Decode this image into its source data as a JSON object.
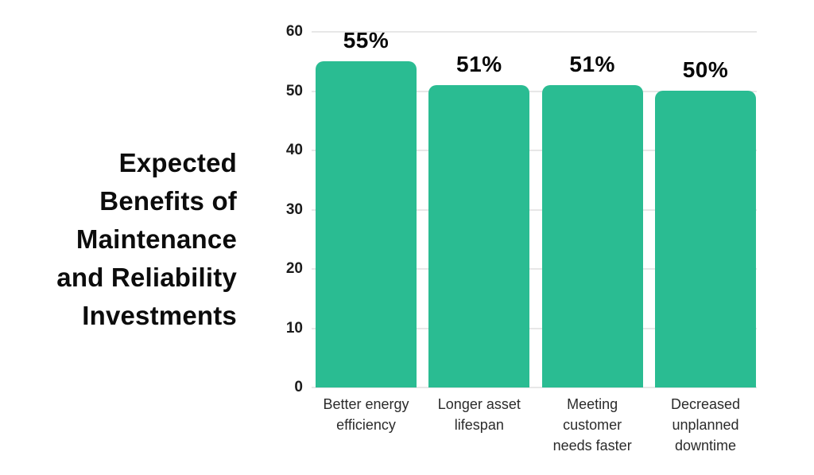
{
  "chart_data": {
    "type": "bar",
    "title": "Expected Benefits of Maintenance and Reliability Investments",
    "title_lines": "Expected\nBenefits of\nMaintenance\nand Reliability\nInvestments",
    "categories": [
      "Better energy\nefficiency",
      "Longer asset\nlifespan",
      "Meeting\ncustomer\nneeds faster",
      "Decreased\nunplanned\ndowntime"
    ],
    "values": [
      55,
      51,
      51,
      50
    ],
    "value_labels": [
      "55%",
      "51%",
      "51%",
      "50%"
    ],
    "xlabel": "",
    "ylabel": "",
    "yticks": [
      0,
      10,
      20,
      30,
      40,
      50,
      60
    ],
    "ylim": [
      0,
      60
    ],
    "grid": true,
    "legend": false,
    "bar_color": "#2abc92",
    "gridline_color": "#e7e7e7",
    "title_color": "#0c0c0c",
    "value_label_color": "#070707",
    "tick_label_color": "#1b1b1b",
    "category_label_color": "#2b2b2b",
    "background": "#ffffff"
  }
}
